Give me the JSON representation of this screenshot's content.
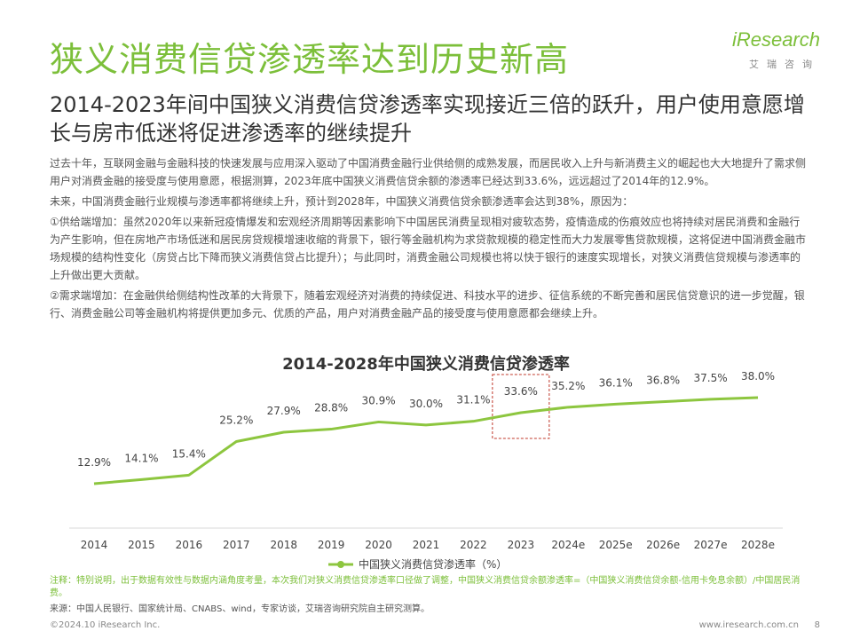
{
  "header": {
    "title": "狭义消费信贷渗透率达到历史新高",
    "subtitle": "2014-2023年间中国狭义消费信贷渗透率实现接近三倍的跃升，用户使用意愿增长与房市低迷将促进渗透率的继续提升",
    "logo_brand": "iResearch",
    "logo_sub": "艾瑞咨询"
  },
  "body": {
    "p1": "过去十年，互联网金融与金融科技的快速发展与应用深入驱动了中国消费金融行业供给侧的成熟发展，而居民收入上升与新消费主义的崛起也大大地提升了需求侧用户对消费金融的接受度与使用意愿，根据测算，2023年底中国狭义消费信贷余额的渗透率已经达到33.6%，远远超过了2014年的12.9%。",
    "p2": "未来，中国消费金融行业规模与渗透率都将继续上升，预计到2028年，中国狭义消费信贷余额渗透率会达到38%，原因为：",
    "p3": "①供给端增加：虽然2020年以来新冠疫情爆发和宏观经济周期等因素影响下中国居民消费呈现相对疲软态势，疫情造成的伤痕效应也将持续对居民消费和金融行为产生影响，但在房地产市场低迷和居民房贷规模增速收缩的背景下，银行等金融机构为求贷款规模的稳定性而大力发展零售贷款规模，这将促进中国消费金融市场规模的结构性变化（房贷占比下降而狭义消费信贷占比提升）；与此同时，消费金融公司规模也将以快于银行的速度实现增长，对狭义消费信贷规模与渗透率的上升做出更大贡献。",
    "p4": "②需求端增加：在金融供给侧结构性改革的大背景下，随着宏观经济对消费的持续促进、科技水平的进步、征信系统的不断完善和居民信贷意识的进一步觉醒，银行、消费金融公司等金融机构将提供更加多元、优质的产品，用户对消费金融产品的接受度与使用意愿都会继续上升。"
  },
  "chart_data": {
    "type": "line",
    "title": "2014-2028年中国狭义消费信贷渗透率",
    "categories": [
      "2014",
      "2015",
      "2016",
      "2017",
      "2018",
      "2019",
      "2020",
      "2021",
      "2022",
      "2023",
      "2024e",
      "2025e",
      "2026e",
      "2027e",
      "2028e"
    ],
    "series": [
      {
        "name": "中国狭义消费信贷渗透率（%）",
        "values": [
          12.9,
          14.1,
          15.4,
          25.2,
          27.9,
          28.8,
          30.9,
          30.0,
          31.1,
          33.6,
          35.2,
          36.1,
          36.8,
          37.5,
          38.0
        ],
        "labels": [
          "12.9%",
          "14.1%",
          "15.4%",
          "25.2%",
          "27.9%",
          "28.8%",
          "30.9%",
          "30.0%",
          "31.1%",
          "33.6%",
          "35.2%",
          "36.1%",
          "36.8%",
          "37.5%",
          "38.0%"
        ]
      }
    ],
    "highlight_category": "2023",
    "line_color": "#8dc63f",
    "ylim": [
      0,
      45
    ],
    "grid": false,
    "legend_position": "bottom"
  },
  "footer": {
    "note": "注释：特别说明，出于数据有效性与数据内涵角度考量，本次我们对狭义消费信贷渗透率口径做了调整，中国狭义消费信贷余额渗透率=（中国狭义消费信贷余额-信用卡免息余额）/中国居民消费。",
    "source": "来源：中国人民银行、国家统计局、CNABS、wind，专家访谈，艾瑞咨询研究院自主研究测算。",
    "copyright": "©2024.10 iResearch Inc.",
    "url": "www.iresearch.com.cn",
    "page": "8"
  }
}
